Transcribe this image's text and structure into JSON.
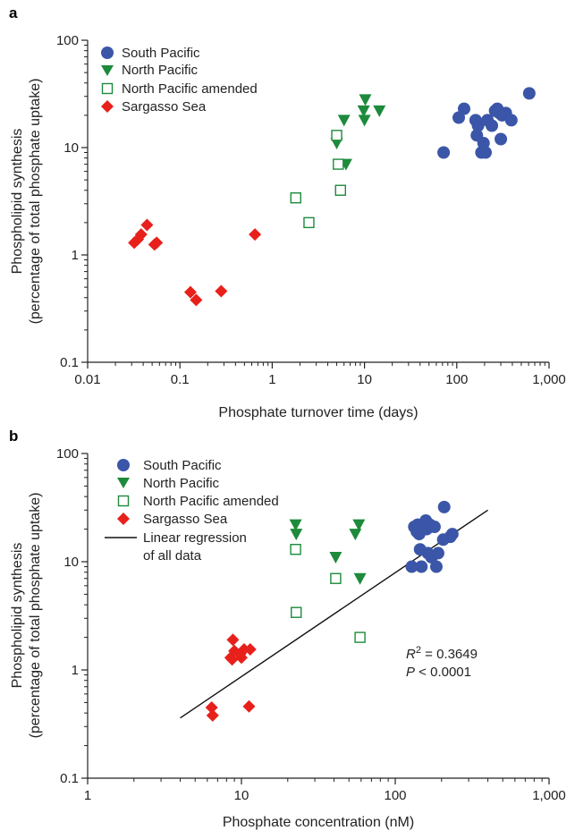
{
  "chart_data": [
    {
      "panel": "a",
      "type": "scatter",
      "xlabel": "Phosphate turnover time (days)",
      "ylabel_lines": [
        "Phospholipid synthesis",
        "(percentage of total phosphate uptake)"
      ],
      "xscale": "log",
      "yscale": "log",
      "xlim": [
        0.01,
        1000
      ],
      "ylim": [
        0.1,
        100
      ],
      "xticks": [
        0.01,
        0.1,
        1,
        10,
        100,
        1000
      ],
      "xtick_labels": [
        "0.01",
        "0.1",
        "1",
        "10",
        "100",
        "1,000"
      ],
      "yticks": [
        0.1,
        1,
        10,
        100
      ],
      "ytick_labels": [
        "0.1",
        "1",
        "10",
        "100"
      ],
      "legend_position": "top-left",
      "series": [
        {
          "name": "South Pacific",
          "marker": "circle",
          "color": "#3b56a8",
          "points": [
            [
              72,
              9
            ],
            [
              105,
              19
            ],
            [
              120,
              23
            ],
            [
              160,
              18
            ],
            [
              165,
              13
            ],
            [
              170,
              16
            ],
            [
              185,
              9
            ],
            [
              195,
              11
            ],
            [
              205,
              9
            ],
            [
              215,
              18
            ],
            [
              240,
              16
            ],
            [
              260,
              22
            ],
            [
              275,
              23
            ],
            [
              290,
              21
            ],
            [
              300,
              12
            ],
            [
              310,
              20
            ],
            [
              340,
              21
            ],
            [
              390,
              18
            ],
            [
              610,
              32
            ]
          ]
        },
        {
          "name": "North Pacific",
          "marker": "triangle-down",
          "color": "#1d8a3c",
          "points": [
            [
              5,
              11
            ],
            [
              6,
              18
            ],
            [
              6.3,
              7
            ],
            [
              9.8,
              22
            ],
            [
              10,
              18
            ],
            [
              10.2,
              28
            ],
            [
              14.5,
              22
            ]
          ]
        },
        {
          "name": "North Pacific amended",
          "marker": "square-open",
          "color": "#1d8a3c",
          "points": [
            [
              1.8,
              3.4
            ],
            [
              2.5,
              2
            ],
            [
              5,
              13
            ],
            [
              5.2,
              7
            ],
            [
              5.5,
              4
            ]
          ]
        },
        {
          "name": "Sargasso Sea",
          "marker": "diamond",
          "color": "#e8201c",
          "points": [
            [
              0.032,
              1.3
            ],
            [
              0.035,
              1.4
            ],
            [
              0.038,
              1.55
            ],
            [
              0.044,
              1.9
            ],
            [
              0.053,
              1.25
            ],
            [
              0.056,
              1.3
            ],
            [
              0.13,
              0.45
            ],
            [
              0.15,
              0.38
            ],
            [
              0.28,
              0.46
            ],
            [
              0.65,
              1.55
            ]
          ]
        }
      ]
    },
    {
      "panel": "b",
      "type": "scatter",
      "xlabel": "Phosphate concentration (nM)",
      "ylabel_lines": [
        "Phospholipid synthesis",
        "(percentage of total phosphate uptake)"
      ],
      "xscale": "log",
      "yscale": "log",
      "xlim": [
        1,
        1000
      ],
      "ylim": [
        0.1,
        100
      ],
      "xticks": [
        1,
        10,
        100,
        1000
      ],
      "xtick_labels": [
        "1",
        "10",
        "100",
        "1,000"
      ],
      "yticks": [
        0.1,
        1,
        10,
        100
      ],
      "ytick_labels": [
        "0.1",
        "1",
        "10",
        "100"
      ],
      "legend_position": "top-left",
      "series": [
        {
          "name": "South Pacific",
          "marker": "circle",
          "color": "#3b56a8",
          "points": [
            [
              128,
              9
            ],
            [
              133,
              21
            ],
            [
              138,
              19
            ],
            [
              140,
              22
            ],
            [
              143,
              18
            ],
            [
              145,
              13
            ],
            [
              148,
              9
            ],
            [
              150,
              20
            ],
            [
              152,
              22
            ],
            [
              158,
              24
            ],
            [
              160,
              20
            ],
            [
              163,
              12
            ],
            [
              168,
              22
            ],
            [
              172,
              11
            ],
            [
              180,
              21
            ],
            [
              185,
              9
            ],
            [
              190,
              12
            ],
            [
              205,
              16
            ],
            [
              208,
              32
            ],
            [
              228,
              17
            ],
            [
              235,
              18
            ]
          ]
        },
        {
          "name": "North Pacific",
          "marker": "triangle-down",
          "color": "#1d8a3c",
          "points": [
            [
              22.5,
              22
            ],
            [
              22.7,
              18
            ],
            [
              41,
              11
            ],
            [
              55,
              18
            ],
            [
              58,
              22
            ],
            [
              59,
              7
            ]
          ]
        },
        {
          "name": "North Pacific amended",
          "marker": "square-open",
          "color": "#1d8a3c",
          "points": [
            [
              22.5,
              13
            ],
            [
              22.7,
              3.4
            ],
            [
              41,
              7
            ],
            [
              59,
              2
            ]
          ]
        },
        {
          "name": "Sargasso Sea",
          "marker": "diamond",
          "color": "#e8201c",
          "points": [
            [
              6.4,
              0.45
            ],
            [
              6.5,
              0.38
            ],
            [
              8.5,
              1.3
            ],
            [
              8.7,
              1.25
            ],
            [
              8.8,
              1.9
            ],
            [
              9,
              1.5
            ],
            [
              9.8,
              1.4
            ],
            [
              10,
              1.3
            ],
            [
              10.4,
              1.55
            ],
            [
              11.2,
              0.46
            ],
            [
              11.4,
              1.55
            ]
          ]
        }
      ],
      "regression": {
        "name": "Linear regression of all data",
        "legend_lines": [
          "Linear regression",
          "of all data"
        ],
        "x": [
          4,
          400
        ],
        "y": [
          0.36,
          30
        ],
        "color": "#111111"
      },
      "annotation": {
        "r2_label": "R",
        "r2_sup": "2",
        "r2_value": " = 0.3649",
        "p_label": "P",
        "p_value": " < 0.0001"
      }
    }
  ]
}
